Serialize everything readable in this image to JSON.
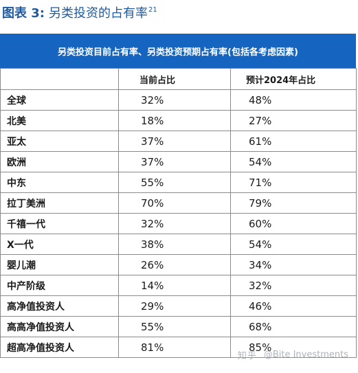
{
  "figure": {
    "label": "图表 3:",
    "title": "另类投资的占有率",
    "footnote": "21"
  },
  "table": {
    "banner": "另类投资目前占有率、另类投资预期占有率(包括各考虑因素)",
    "headers": [
      "",
      "当前占比",
      "预计2024年占比"
    ],
    "rows": [
      {
        "group": "全球",
        "current": "32%",
        "expected": "48%"
      },
      {
        "group": "北美",
        "current": "18%",
        "expected": "27%"
      },
      {
        "group": "亚太",
        "current": "37%",
        "expected": "61%"
      },
      {
        "group": "欧洲",
        "current": "37%",
        "expected": "54%"
      },
      {
        "group": "中东",
        "current": "55%",
        "expected": "71%"
      },
      {
        "group": "拉丁美洲",
        "current": "70%",
        "expected": "79%"
      },
      {
        "group": "千禧一代",
        "current": "32%",
        "expected": "60%"
      },
      {
        "group": "X一代",
        "current": "38%",
        "expected": "54%"
      },
      {
        "group": "婴儿潮",
        "current": "26%",
        "expected": "34%"
      },
      {
        "group": "中产阶级",
        "current": "14%",
        "expected": "32%"
      },
      {
        "group": "高净值投资人",
        "current": "29%",
        "expected": "46%"
      },
      {
        "group": "高高净值投资人",
        "current": "55%",
        "expected": "68%"
      },
      {
        "group": "超高净值投资人",
        "current": "81%",
        "expected": "85%"
      }
    ]
  },
  "watermark": {
    "logo": "知乎",
    "text": "@Bite Investments"
  },
  "colors": {
    "title": "#1e5aa0",
    "banner": "#1565c0",
    "grid": "#8a8a8a",
    "watermark": "#aeb4bb"
  }
}
